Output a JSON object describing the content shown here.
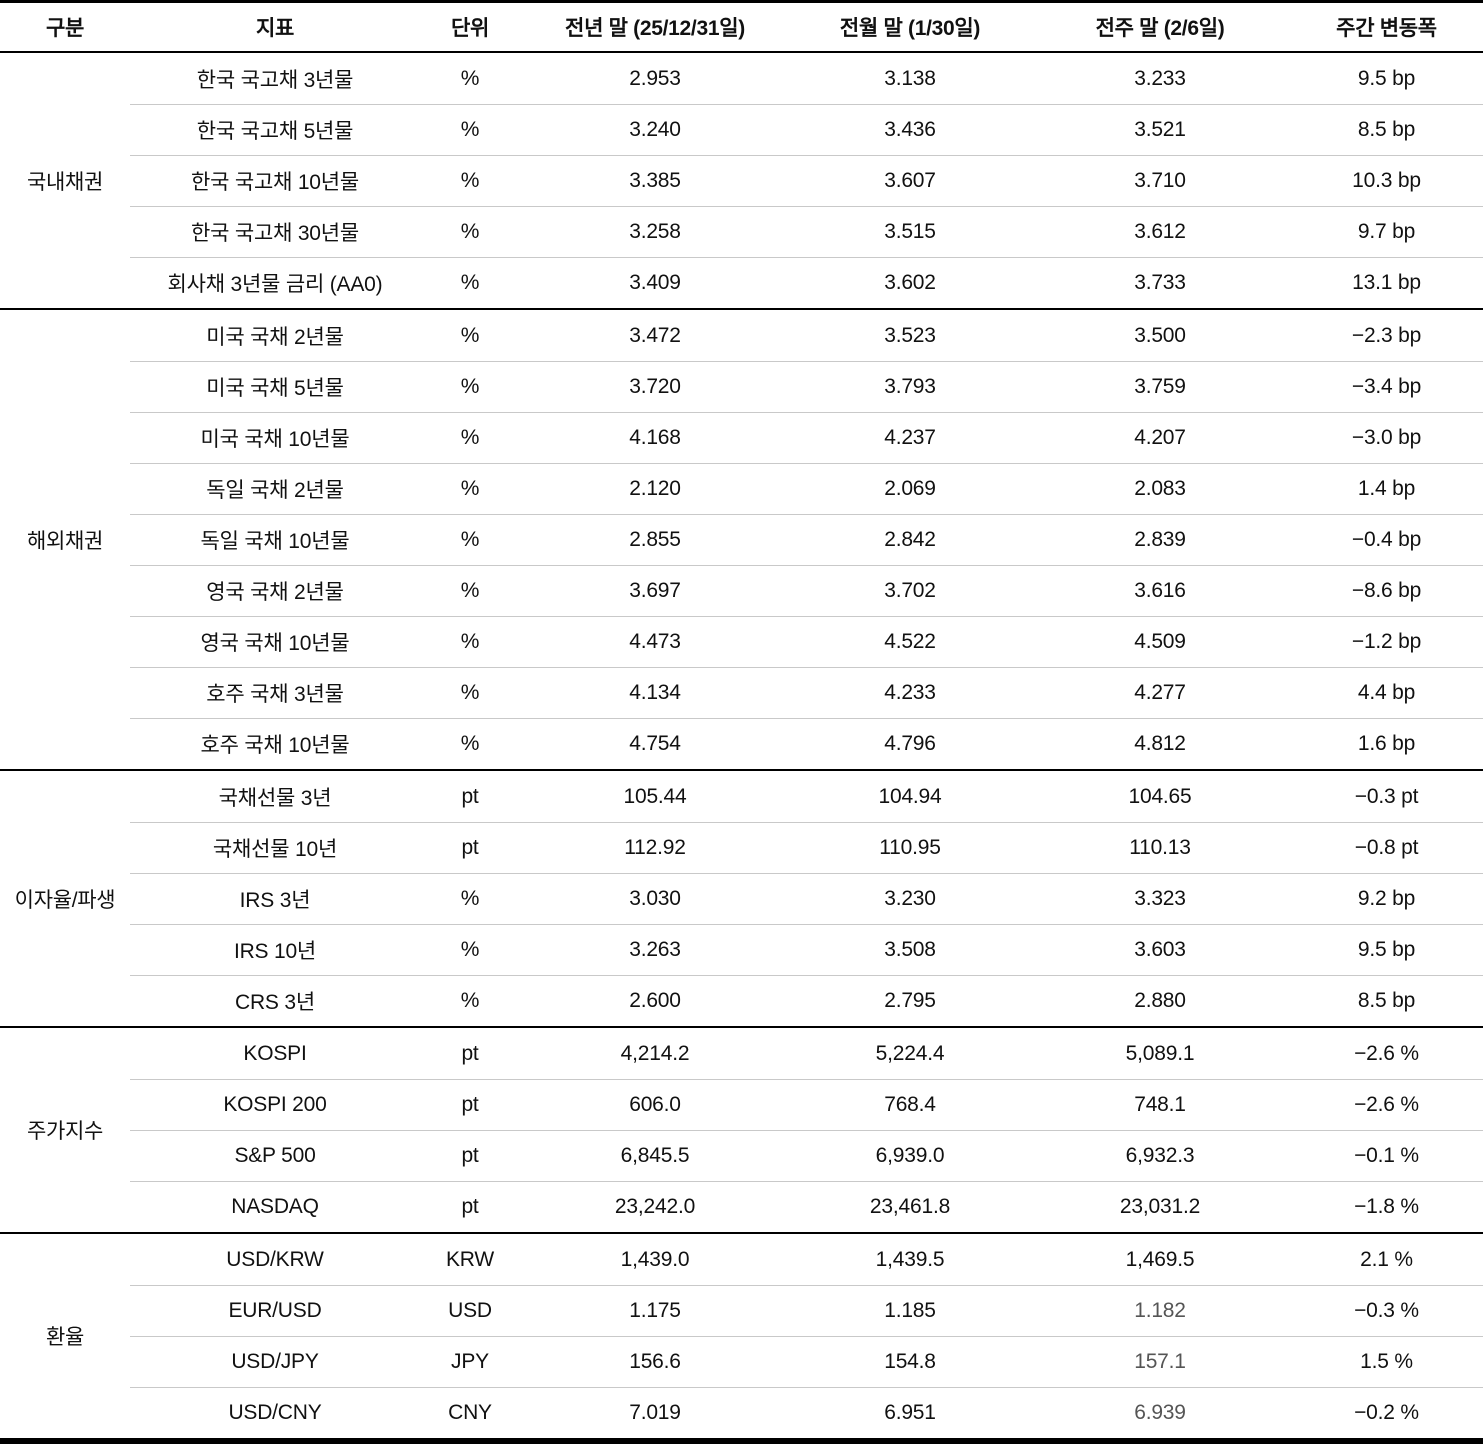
{
  "table": {
    "columns": [
      {
        "label": "구분"
      },
      {
        "label": "지표"
      },
      {
        "label": "단위"
      },
      {
        "label": "전년 말 (25/12/31일)"
      },
      {
        "label": "전월 말 (1/30일)"
      },
      {
        "label": "전주 말 (2/6일)"
      },
      {
        "label": "주간 변동폭"
      }
    ],
    "sections": [
      {
        "category": "국내채권",
        "rows": [
          {
            "indicator": "한국 국고채 3년물",
            "unit": "%",
            "prev_year_end": "2.953",
            "prev_month_end": "3.138",
            "prev_week_end": "3.233",
            "weekly_change": "9.5 bp"
          },
          {
            "indicator": "한국 국고채 5년물",
            "unit": "%",
            "prev_year_end": "3.240",
            "prev_month_end": "3.436",
            "prev_week_end": "3.521",
            "weekly_change": "8.5 bp"
          },
          {
            "indicator": "한국 국고채 10년물",
            "unit": "%",
            "prev_year_end": "3.385",
            "prev_month_end": "3.607",
            "prev_week_end": "3.710",
            "weekly_change": "10.3 bp"
          },
          {
            "indicator": "한국 국고채 30년물",
            "unit": "%",
            "prev_year_end": "3.258",
            "prev_month_end": "3.515",
            "prev_week_end": "3.612",
            "weekly_change": "9.7 bp"
          },
          {
            "indicator": "회사채 3년물 금리 (AA0)",
            "unit": "%",
            "prev_year_end": "3.409",
            "prev_month_end": "3.602",
            "prev_week_end": "3.733",
            "weekly_change": "13.1 bp"
          }
        ]
      },
      {
        "category": "해외채권",
        "rows": [
          {
            "indicator": "미국 국채 2년물",
            "unit": "%",
            "prev_year_end": "3.472",
            "prev_month_end": "3.523",
            "prev_week_end": "3.500",
            "weekly_change": "−2.3 bp"
          },
          {
            "indicator": "미국 국채 5년물",
            "unit": "%",
            "prev_year_end": "3.720",
            "prev_month_end": "3.793",
            "prev_week_end": "3.759",
            "weekly_change": "−3.4 bp"
          },
          {
            "indicator": "미국 국채 10년물",
            "unit": "%",
            "prev_year_end": "4.168",
            "prev_month_end": "4.237",
            "prev_week_end": "4.207",
            "weekly_change": "−3.0 bp"
          },
          {
            "indicator": "독일 국채 2년물",
            "unit": "%",
            "prev_year_end": "2.120",
            "prev_month_end": "2.069",
            "prev_week_end": "2.083",
            "weekly_change": "1.4 bp"
          },
          {
            "indicator": "독일 국채 10년물",
            "unit": "%",
            "prev_year_end": "2.855",
            "prev_month_end": "2.842",
            "prev_week_end": "2.839",
            "weekly_change": "−0.4 bp"
          },
          {
            "indicator": "영국 국채 2년물",
            "unit": "%",
            "prev_year_end": "3.697",
            "prev_month_end": "3.702",
            "prev_week_end": "3.616",
            "weekly_change": "−8.6 bp"
          },
          {
            "indicator": "영국 국채 10년물",
            "unit": "%",
            "prev_year_end": "4.473",
            "prev_month_end": "4.522",
            "prev_week_end": "4.509",
            "weekly_change": "−1.2 bp"
          },
          {
            "indicator": "호주 국채 3년물",
            "unit": "%",
            "prev_year_end": "4.134",
            "prev_month_end": "4.233",
            "prev_week_end": "4.277",
            "weekly_change": "4.4 bp"
          },
          {
            "indicator": "호주 국채 10년물",
            "unit": "%",
            "prev_year_end": "4.754",
            "prev_month_end": "4.796",
            "prev_week_end": "4.812",
            "weekly_change": "1.6 bp"
          }
        ]
      },
      {
        "category": "이자율/파생",
        "rows": [
          {
            "indicator": "국채선물 3년",
            "unit": "pt",
            "prev_year_end": "105.44",
            "prev_month_end": "104.94",
            "prev_week_end": "104.65",
            "weekly_change": "−0.3 pt"
          },
          {
            "indicator": "국채선물 10년",
            "unit": "pt",
            "prev_year_end": "112.92",
            "prev_month_end": "110.95",
            "prev_week_end": "110.13",
            "weekly_change": "−0.8 pt"
          },
          {
            "indicator": "IRS 3년",
            "unit": "%",
            "prev_year_end": "3.030",
            "prev_month_end": "3.230",
            "prev_week_end": "3.323",
            "weekly_change": "9.2 bp"
          },
          {
            "indicator": "IRS 10년",
            "unit": "%",
            "prev_year_end": "3.263",
            "prev_month_end": "3.508",
            "prev_week_end": "3.603",
            "weekly_change": "9.5 bp"
          },
          {
            "indicator": "CRS 3년",
            "unit": "%",
            "prev_year_end": "2.600",
            "prev_month_end": "2.795",
            "prev_week_end": "2.880",
            "weekly_change": "8.5 bp"
          }
        ]
      },
      {
        "category": "주가지수",
        "rows": [
          {
            "indicator": "KOSPI",
            "unit": "pt",
            "prev_year_end": "4,214.2",
            "prev_month_end": "5,224.4",
            "prev_week_end": "5,089.1",
            "weekly_change": "−2.6 %"
          },
          {
            "indicator": "KOSPI 200",
            "unit": "pt",
            "prev_year_end": "606.0",
            "prev_month_end": "768.4",
            "prev_week_end": "748.1",
            "weekly_change": "−2.6 %"
          },
          {
            "indicator": "S&P 500",
            "unit": "pt",
            "prev_year_end": "6,845.5",
            "prev_month_end": "6,939.0",
            "prev_week_end": "6,932.3",
            "weekly_change": "−0.1 %"
          },
          {
            "indicator": "NASDAQ",
            "unit": "pt",
            "prev_year_end": "23,242.0",
            "prev_month_end": "23,461.8",
            "prev_week_end": "23,031.2",
            "weekly_change": "−1.8 %"
          }
        ]
      },
      {
        "category": "환율",
        "rows": [
          {
            "indicator": "USD/KRW",
            "unit": "KRW",
            "prev_year_end": "1,439.0",
            "prev_month_end": "1,439.5",
            "prev_week_end": "1,469.5",
            "weekly_change": "2.1 %"
          },
          {
            "indicator": "EUR/USD",
            "unit": "USD",
            "prev_year_end": "1.175",
            "prev_month_end": "1.185",
            "prev_week_end": "1.182",
            "weekly_change": "−0.3 %",
            "muted_prev_week": true
          },
          {
            "indicator": "USD/JPY",
            "unit": "JPY",
            "prev_year_end": "156.6",
            "prev_month_end": "154.8",
            "prev_week_end": "157.1",
            "weekly_change": "1.5 %",
            "muted_prev_week": true
          },
          {
            "indicator": "USD/CNY",
            "unit": "CNY",
            "prev_year_end": "7.019",
            "prev_month_end": "6.951",
            "prev_week_end": "6.939",
            "weekly_change": "−0.2 %",
            "muted_prev_week": true
          }
        ]
      }
    ]
  }
}
